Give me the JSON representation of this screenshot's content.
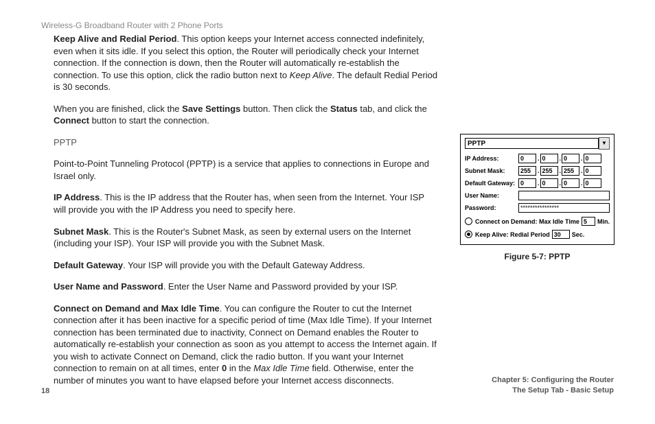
{
  "header": {
    "title": "Wireless-G Broadband Router with 2 Phone Ports"
  },
  "body": {
    "keepalive_label": "Keep Alive and Redial Period",
    "keepalive_text_1": ". This option keeps your Internet access connected indefinitely, even when it sits idle. If you select this option, the Router will periodically check your Internet connection. If the connection is down, then the Router will automatically re-establish the connection. To use this option, click the radio button next to ",
    "keepalive_italic": "Keep Alive",
    "keepalive_text_2": ". The default Redial Period is 30 seconds.",
    "finish_1": "When you are finished, click the ",
    "save_settings": "Save Settings",
    "finish_2": " button. Then click the ",
    "status": "Status",
    "finish_3": " tab, and click the ",
    "connect": "Connect",
    "finish_4": " button to start the connection.",
    "pptp_heading": "PPTP",
    "pptp_intro": "Point-to-Point Tunneling Protocol (PPTP) is a service that applies to connections in Europe and Israel only.",
    "ip_label": "IP Address",
    "ip_text": ". This is the IP address that the Router has, when seen from the Internet. Your ISP will provide you with the IP Address you need to specify here.",
    "subnet_label": "Subnet Mask",
    "subnet_text": ". This is the Router's Subnet Mask, as seen by external users on the Internet (including your ISP). Your ISP will provide you with the Subnet Mask.",
    "gateway_label": "Default Gateway",
    "gateway_text": ". Your ISP will provide you with the Default Gateway Address.",
    "userpass_label": "User Name and Password",
    "userpass_text": ". Enter the User Name and Password provided by your ISP.",
    "cod_label": "Connect on Demand and Max Idle Time",
    "cod_text_1": ". You can configure the Router to cut the Internet connection after it has been inactive for a specific period of time (Max Idle Time). If your Internet connection has been terminated due to inactivity, Connect on Demand enables the Router to automatically re-establish your connection as soon as you attempt to access the Internet again. If you wish to activate Connect on Demand, click the radio button. If you want your Internet connection to remain on at all times, enter ",
    "cod_zero": "0",
    "cod_text_2": " in the ",
    "cod_italic": "Max Idle Time",
    "cod_text_3": " field. Otherwise, enter the number of minutes you want to have elapsed before your Internet access disconnects."
  },
  "figure": {
    "dropdown_value": "PPTP",
    "dropdown_arrow": "▼",
    "rows": {
      "ip_label": "IP Address:",
      "ip_octets": [
        "0",
        "0",
        "0",
        "0"
      ],
      "subnet_label": "Subnet Mask:",
      "subnet_octets": [
        "255",
        "255",
        "255",
        "0"
      ],
      "gateway_label": "Default Gateway:",
      "gateway_octets": [
        "0",
        "0",
        "0",
        "0"
      ],
      "username_label": "User Name:",
      "username_value": "",
      "password_label": "Password:",
      "password_value": "****************"
    },
    "opt1_label": "Connect on Demand: Max Idle Time",
    "opt1_value": "5",
    "opt1_unit": "Min.",
    "opt2_label": "Keep Alive: Redial Period",
    "opt2_value": "30",
    "opt2_unit": "Sec.",
    "caption": "Figure 5-7: PPTP"
  },
  "footer": {
    "page": "18",
    "chapter": "Chapter 5: Configuring the Router",
    "subchapter": "The Setup Tab - Basic Setup"
  }
}
